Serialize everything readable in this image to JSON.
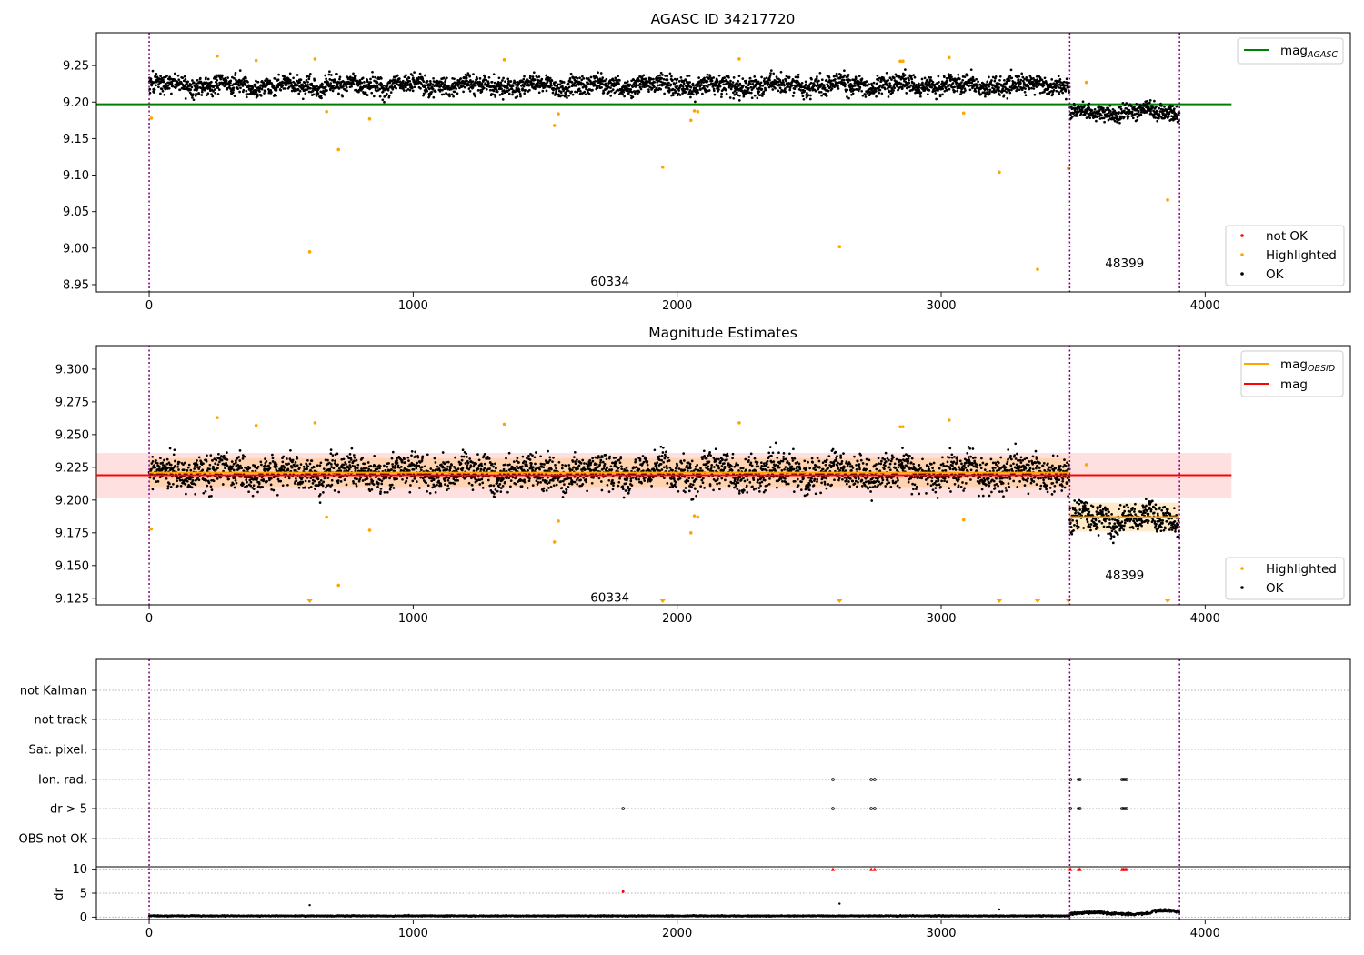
{
  "chart_data": [
    {
      "type": "scatter",
      "title": "AGASC ID 34217720",
      "xlim": [
        -200,
        4550
      ],
      "ylim": [
        8.94,
        9.295
      ],
      "xticks": [
        0,
        1000,
        2000,
        3000,
        4000
      ],
      "yticks": [
        8.95,
        9.0,
        9.05,
        9.1,
        9.15,
        9.2,
        9.25
      ],
      "ytick_labels": [
        "8.95",
        "9.00",
        "9.05",
        "9.10",
        "9.15",
        "9.20",
        "9.25"
      ],
      "obsid_boundaries": [
        0,
        3487,
        3903
      ],
      "obsids": [
        {
          "label": "60334",
          "x": 1745,
          "y": 8.955
        },
        {
          "label": "48399",
          "x": 3695,
          "y": 8.98
        }
      ],
      "reference_lines": [
        {
          "name": "mag_AGASC",
          "y": 9.197,
          "x": [
            -200,
            4100
          ],
          "color": "#008000"
        }
      ],
      "point_series": [
        {
          "name": "OK",
          "color": "#000000",
          "segments": [
            {
              "x0": 0,
              "x1": 3487,
              "center": 9.223,
              "spread": 0.012
            },
            {
              "x0": 3487,
              "x1": 3903,
              "center": 9.186,
              "spread": 0.01
            }
          ]
        }
      ],
      "highlighted_points": {
        "name": "Highlighted",
        "color": "#FFA500",
        "x": [
          8,
          258,
          405,
          628,
          672,
          717,
          835,
          1345,
          1535,
          1550,
          1945,
          2052,
          2065,
          2078,
          2235,
          2615,
          2845,
          2855,
          3030,
          3085,
          3220,
          3365,
          3482,
          3550,
          3858
        ],
        "y": [
          9.178,
          9.263,
          9.257,
          9.259,
          9.187,
          9.135,
          9.177,
          9.258,
          9.168,
          9.184,
          9.111,
          9.175,
          9.188,
          9.187,
          9.259,
          9.002,
          9.256,
          9.256,
          9.261,
          9.185,
          9.104,
          8.971,
          9.109,
          9.227,
          9.066
        ]
      },
      "extra_points": {
        "x": [
          608
        ],
        "y": [
          8.995
        ]
      },
      "legends": [
        {
          "position": "top-right",
          "entries": [
            {
              "label_base": "mag",
              "label_sub": "AGASC",
              "kind": "line",
              "color": "#008000"
            }
          ]
        },
        {
          "position": "bottom-right",
          "entries": [
            {
              "label": "not OK",
              "kind": "dot",
              "color": "#FF0000"
            },
            {
              "label": "Highlighted",
              "kind": "dot",
              "color": "#FFA500"
            },
            {
              "label": "OK",
              "kind": "dot",
              "color": "#000000"
            }
          ]
        }
      ]
    },
    {
      "type": "scatter",
      "title": "Magnitude Estimates",
      "xlim": [
        -200,
        4550
      ],
      "ylim": [
        9.12,
        9.318
      ],
      "xticks": [
        0,
        1000,
        2000,
        3000,
        4000
      ],
      "yticks": [
        9.125,
        9.15,
        9.175,
        9.2,
        9.225,
        9.25,
        9.275,
        9.3
      ],
      "ytick_labels": [
        "9.125",
        "9.150",
        "9.175",
        "9.200",
        "9.225",
        "9.250",
        "9.275",
        "9.300"
      ],
      "obsid_boundaries": [
        0,
        3487,
        3903
      ],
      "obsids": [
        {
          "label": "60334",
          "x": 1745,
          "y": 9.126
        },
        {
          "label": "48399",
          "x": 3695,
          "y": 9.143
        }
      ],
      "reference_lines": [
        {
          "name": "mag",
          "y": 9.219,
          "x": [
            -200,
            4100
          ],
          "color": "#FF0000",
          "band": [
            9.202,
            9.236
          ],
          "band_color": "#FF0000",
          "band_opacity": 0.12
        },
        {
          "name": "mag_OBSID",
          "y": 9.221,
          "x": [
            0,
            3487
          ],
          "color": "#FFA500",
          "band": [
            9.21,
            9.232
          ],
          "band_color": "#FFA500",
          "band_opacity": 0.22
        },
        {
          "name": "mag_OBSID",
          "y": 9.187,
          "x": [
            3487,
            3903
          ],
          "color": "#FFA500",
          "band": [
            9.176,
            9.198
          ],
          "band_color": "#FFA500",
          "band_opacity": 0.22
        }
      ],
      "point_series": [
        {
          "name": "OK",
          "color": "#000000",
          "segments": [
            {
              "x0": 0,
              "x1": 3487,
              "center": 9.221,
              "spread": 0.012
            },
            {
              "x0": 3487,
              "x1": 3903,
              "center": 9.186,
              "spread": 0.01
            }
          ]
        }
      ],
      "highlighted_points": {
        "name": "Highlighted",
        "color": "#FFA500",
        "x": [
          8,
          258,
          405,
          628,
          672,
          717,
          835,
          1345,
          1535,
          1550,
          2052,
          2065,
          2078,
          2235,
          2845,
          2855,
          3030,
          3085,
          3550
        ],
        "y": [
          9.178,
          9.263,
          9.257,
          9.259,
          9.187,
          9.135,
          9.177,
          9.258,
          9.168,
          9.184,
          9.175,
          9.188,
          9.187,
          9.259,
          9.256,
          9.256,
          9.261,
          9.185,
          9.227
        ]
      },
      "clipped_points": {
        "color": "#FFA500",
        "x": [
          608,
          1945,
          2615,
          3220,
          3365,
          3482,
          3858
        ]
      },
      "legends": [
        {
          "position": "top-right",
          "entries": [
            {
              "label_base": "mag",
              "label_sub": "OBSID",
              "kind": "line",
              "color": "#FFA500"
            },
            {
              "label": "mag",
              "kind": "line",
              "color": "#FF0000"
            }
          ]
        },
        {
          "position": "bottom-right",
          "entries": [
            {
              "label": "Highlighted",
              "kind": "dot",
              "color": "#FFA500"
            },
            {
              "label": "OK",
              "kind": "dot",
              "color": "#000000"
            }
          ]
        }
      ]
    },
    {
      "type": "scatter",
      "xlim": [
        -200,
        4550
      ],
      "xticks": [
        0,
        1000,
        2000,
        3000,
        4000
      ],
      "obsid_boundaries": [
        0,
        3487,
        3903
      ],
      "flag_rows": [
        "not Kalman",
        "not track",
        "Sat. pixel.",
        "Ion. rad.",
        "dr > 5",
        "OBS not OK"
      ],
      "flag_points": [
        {
          "flag": "Ion. rad.",
          "x": [
            2590,
            2735,
            2748,
            3490,
            3520,
            3526,
            3685,
            3690,
            3696,
            3702
          ]
        },
        {
          "flag": "dr > 5",
          "x": [
            1795,
            2590,
            2735,
            2748,
            3490,
            3520,
            3526,
            3685,
            3690,
            3696,
            3702
          ]
        }
      ],
      "dr_panel": {
        "ylabel": "dr",
        "ylim": [
          -0.5,
          10.5
        ],
        "yticks": [
          0,
          5,
          10
        ],
        "ytick_labels": [
          "0",
          "5",
          "10"
        ],
        "clip_value": 10,
        "clipped_points": {
          "color": "#FF0000",
          "x": [
            2590,
            2735,
            2748,
            3490,
            3520,
            3526,
            3685,
            3690,
            3696,
            3702
          ]
        },
        "flagged_points": {
          "color": "#FF0000",
          "x": [
            1795
          ],
          "y": [
            5.3
          ]
        },
        "outliers": {
          "x": [
            608,
            2615,
            3220
          ],
          "y": [
            2.5,
            2.8,
            1.6
          ]
        },
        "baseline": [
          {
            "x0": 0,
            "x1": 3487,
            "center": 0.25,
            "spread": 0.12
          },
          {
            "x0": 3487,
            "x1": 3903,
            "center": 0.8,
            "spread": 0.28
          }
        ]
      }
    }
  ]
}
